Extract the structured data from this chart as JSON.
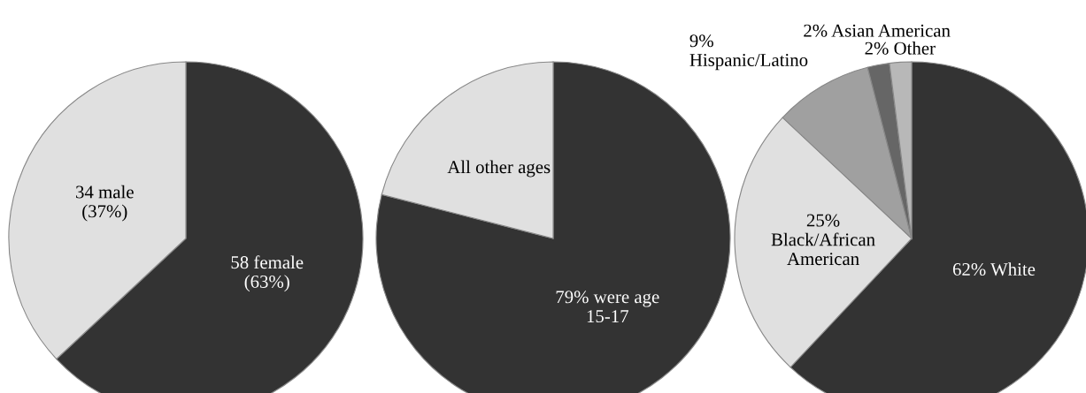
{
  "chart_data": [
    {
      "type": "pie",
      "categories": [
        "58 female\n(63%)",
        "34 male\n(37%)"
      ],
      "values": [
        58,
        34
      ],
      "colors": [
        "#333333",
        "#e0e0e0"
      ]
    },
    {
      "type": "pie",
      "categories": [
        "79% were age\n15-17",
        "All other ages"
      ],
      "values": [
        79,
        21
      ],
      "colors": [
        "#333333",
        "#e0e0e0"
      ]
    },
    {
      "type": "pie",
      "categories": [
        "62% White",
        "25%\nBlack/African\nAmerican",
        "9%\nHispanic/Latino",
        "2% Asian American",
        "2% Other"
      ],
      "values": [
        62,
        25,
        9,
        2,
        2
      ],
      "colors": [
        "#333333",
        "#e0e0e0",
        "#a0a0a0",
        "#666666",
        "#b8b8b8"
      ]
    }
  ]
}
